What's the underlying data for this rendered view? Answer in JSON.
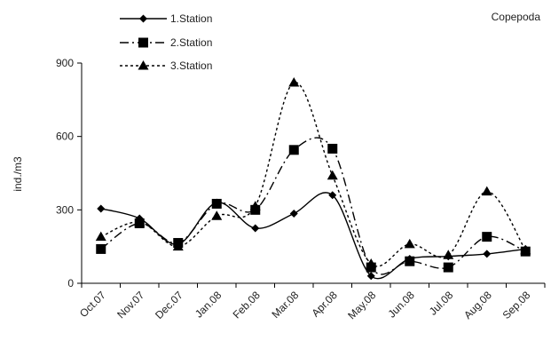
{
  "chart_data": {
    "type": "line",
    "title": "Copepoda",
    "xlabel": "",
    "ylabel": "ind./m3",
    "ylim": [
      0,
      900
    ],
    "yticks": [
      0,
      300,
      600,
      900
    ],
    "grid": false,
    "legend_position": "top-left",
    "categories": [
      "Oct.07",
      "Nov.07",
      "Dec.07",
      "Jan.08",
      "Feb.08",
      "Mar.08",
      "Apr.08",
      "May.08",
      "Jun.08",
      "Jul.08",
      "Aug.08",
      "Sep.08"
    ],
    "series": [
      {
        "name": "1.Station",
        "marker": "diamond",
        "line_style": "solid",
        "color": "#000000",
        "values": [
          305,
          265,
          160,
          330,
          225,
          285,
          360,
          30,
          100,
          110,
          120,
          140
        ]
      },
      {
        "name": "2.Station",
        "marker": "square",
        "line_style": "dash-dot",
        "color": "#000000",
        "values": [
          140,
          245,
          165,
          325,
          300,
          545,
          550,
          65,
          90,
          65,
          190,
          130
        ]
      },
      {
        "name": "3.Station",
        "marker": "triangle",
        "line_style": "dotted",
        "color": "#000000",
        "values": [
          190,
          250,
          150,
          275,
          315,
          820,
          440,
          80,
          160,
          115,
          375,
          135
        ]
      }
    ]
  }
}
